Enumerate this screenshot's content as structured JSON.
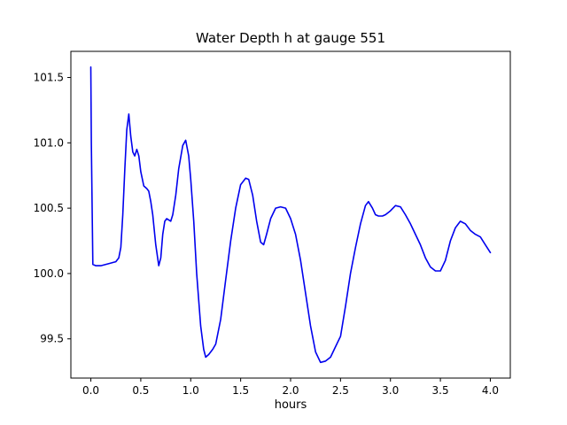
{
  "figure": {
    "title": "Water Depth h at gauge 551",
    "xlabel": "hours"
  },
  "chart_data": {
    "type": "line",
    "title": "Water Depth h at gauge 551",
    "xlabel": "hours",
    "ylabel": "",
    "line_color": "#0000ee",
    "background_color": "#ffffff",
    "axis_color": "#000000",
    "grid": false,
    "legend": false,
    "xlim": [
      -0.2,
      4.2
    ],
    "ylim": [
      99.2,
      101.7
    ],
    "xticks": [
      0.0,
      0.5,
      1.0,
      1.5,
      2.0,
      2.5,
      3.0,
      3.5,
      4.0
    ],
    "yticks": [
      99.5,
      100.0,
      100.5,
      101.0,
      101.5
    ],
    "x": [
      0.0,
      0.005,
      0.02,
      0.05,
      0.1,
      0.15,
      0.2,
      0.25,
      0.28,
      0.3,
      0.32,
      0.34,
      0.36,
      0.38,
      0.4,
      0.42,
      0.44,
      0.46,
      0.48,
      0.5,
      0.53,
      0.56,
      0.58,
      0.6,
      0.62,
      0.65,
      0.68,
      0.7,
      0.72,
      0.74,
      0.76,
      0.78,
      0.8,
      0.82,
      0.85,
      0.88,
      0.92,
      0.95,
      0.98,
      1.0,
      1.03,
      1.06,
      1.1,
      1.13,
      1.15,
      1.18,
      1.22,
      1.25,
      1.3,
      1.35,
      1.4,
      1.45,
      1.5,
      1.55,
      1.58,
      1.62,
      1.66,
      1.7,
      1.73,
      1.76,
      1.8,
      1.85,
      1.9,
      1.95,
      2.0,
      2.05,
      2.1,
      2.15,
      2.2,
      2.25,
      2.3,
      2.35,
      2.4,
      2.45,
      2.5,
      2.55,
      2.6,
      2.65,
      2.7,
      2.75,
      2.78,
      2.82,
      2.85,
      2.88,
      2.92,
      2.95,
      3.0,
      3.05,
      3.1,
      3.15,
      3.2,
      3.25,
      3.3,
      3.35,
      3.4,
      3.45,
      3.5,
      3.55,
      3.6,
      3.65,
      3.7,
      3.75,
      3.8,
      3.85,
      3.9,
      3.95,
      4.0
    ],
    "y": [
      101.58,
      101.0,
      100.07,
      100.06,
      100.06,
      100.07,
      100.08,
      100.09,
      100.12,
      100.2,
      100.45,
      100.8,
      101.1,
      101.22,
      101.05,
      100.93,
      100.9,
      100.95,
      100.9,
      100.78,
      100.67,
      100.65,
      100.63,
      100.55,
      100.45,
      100.22,
      100.06,
      100.12,
      100.3,
      100.4,
      100.42,
      100.41,
      100.4,
      100.45,
      100.6,
      100.8,
      100.98,
      101.02,
      100.9,
      100.72,
      100.4,
      100.0,
      99.6,
      99.42,
      99.36,
      99.38,
      99.42,
      99.46,
      99.65,
      99.95,
      100.25,
      100.5,
      100.68,
      100.73,
      100.72,
      100.6,
      100.4,
      100.24,
      100.22,
      100.3,
      100.42,
      100.5,
      100.51,
      100.5,
      100.42,
      100.3,
      100.1,
      99.85,
      99.6,
      99.4,
      99.32,
      99.33,
      99.36,
      99.44,
      99.52,
      99.75,
      100.0,
      100.2,
      100.38,
      100.52,
      100.55,
      100.5,
      100.45,
      100.44,
      100.44,
      100.45,
      100.48,
      100.52,
      100.51,
      100.45,
      100.38,
      100.3,
      100.22,
      100.12,
      100.05,
      100.02,
      100.02,
      100.1,
      100.25,
      100.35,
      100.4,
      100.38,
      100.33,
      100.3,
      100.28,
      100.22,
      100.16
    ]
  }
}
